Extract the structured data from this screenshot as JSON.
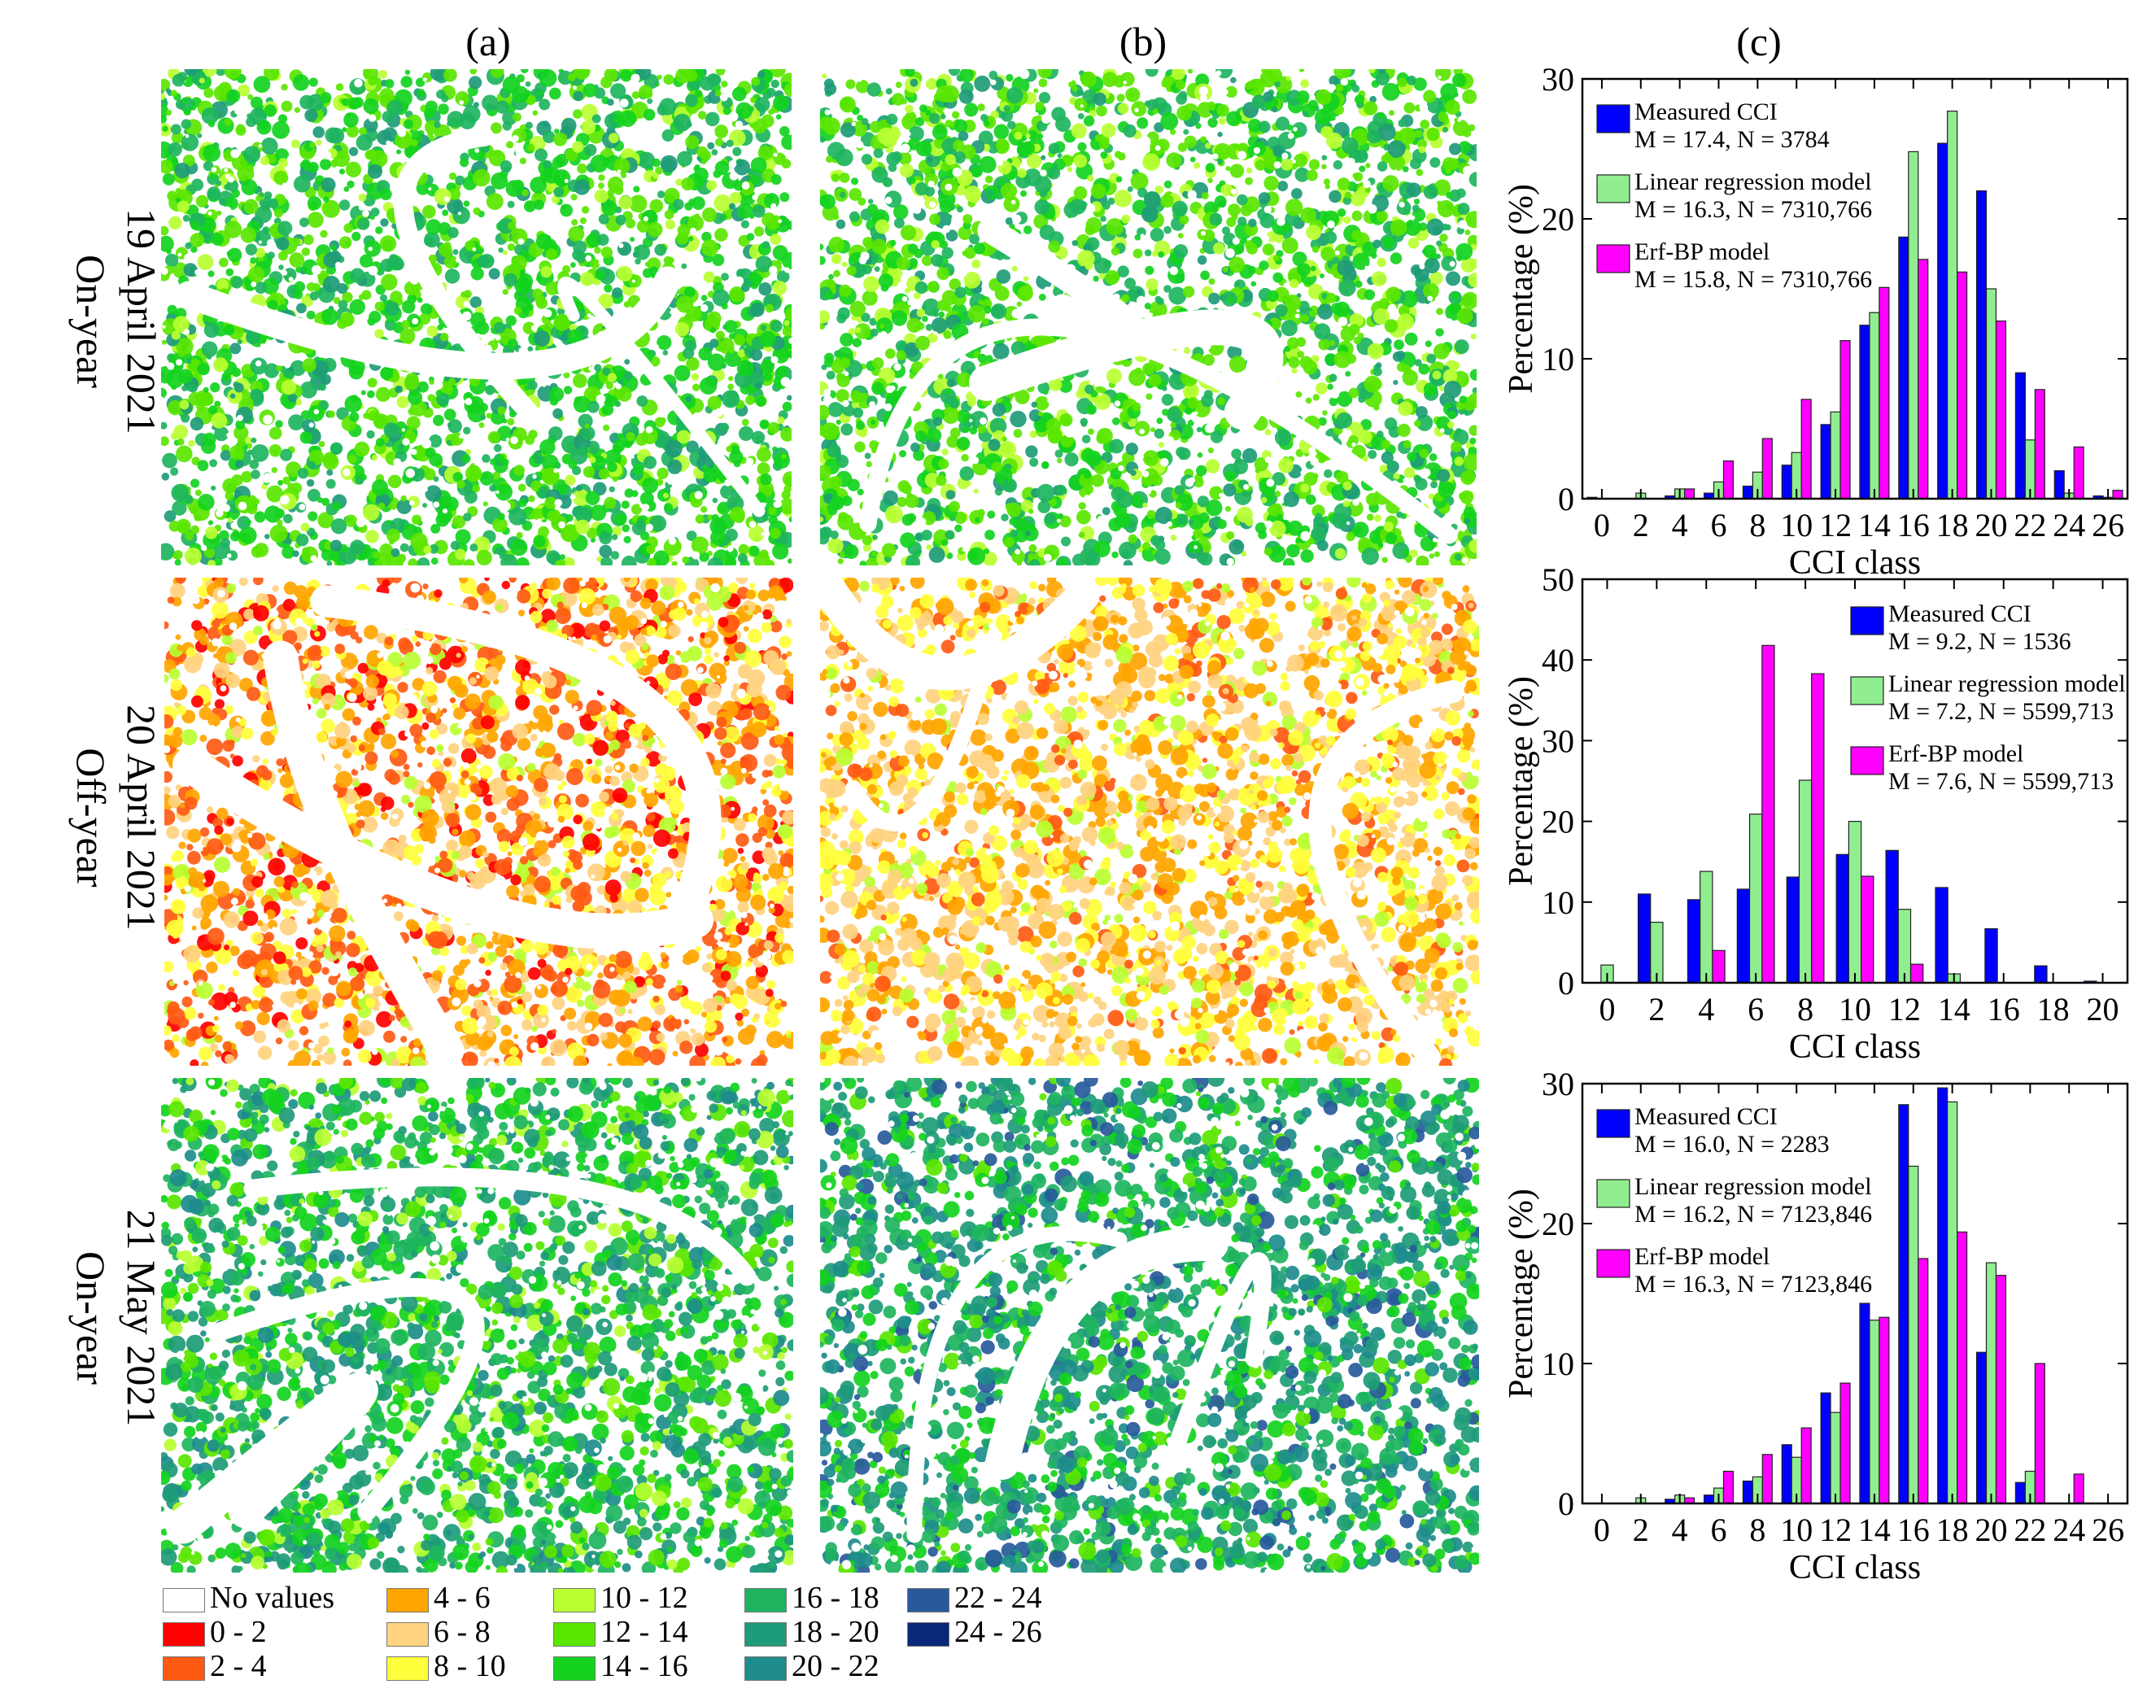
{
  "columns": [
    "(a)",
    "(b)",
    "(c)"
  ],
  "rows": [
    {
      "date": "19 April 2021",
      "phase": "On-year"
    },
    {
      "date": "20 April 2021",
      "phase": "Off-year"
    },
    {
      "date": "21 May 2021",
      "phase": "On-year"
    }
  ],
  "legend": [
    {
      "label": "No values",
      "color": "#ffffff"
    },
    {
      "label": "0 - 2",
      "color": "#ff0000"
    },
    {
      "label": "2 - 4",
      "color": "#ff5a14"
    },
    {
      "label": "4 - 6",
      "color": "#ffa500"
    },
    {
      "label": "6 - 8",
      "color": "#ffd37f"
    },
    {
      "label": "8 - 10",
      "color": "#ffff3c"
    },
    {
      "label": "10 - 12",
      "color": "#b9ff32"
    },
    {
      "label": "12 - 14",
      "color": "#5ae600"
    },
    {
      "label": "14 - 16",
      "color": "#14d21e"
    },
    {
      "label": "16 - 18",
      "color": "#1eb45f"
    },
    {
      "label": "18 - 20",
      "color": "#1e9b78"
    },
    {
      "label": "20 - 22",
      "color": "#1e8c8c"
    },
    {
      "label": "22 - 24",
      "color": "#285a9b"
    },
    {
      "label": "24 - 26",
      "color": "#0a2878"
    }
  ],
  "series_colors": {
    "measured": "#0000ff",
    "linear": "#90ee90",
    "erf": "#ff00ff"
  },
  "chart_data": [
    {
      "type": "bar",
      "xlabel": "CCI class",
      "ylabel": "Percentage (%)",
      "ylim": [
        0,
        30
      ],
      "yticks": [
        0,
        10,
        20,
        30
      ],
      "xlim": [
        -1,
        27
      ],
      "xticks": [
        0,
        2,
        4,
        6,
        8,
        10,
        12,
        14,
        16,
        18,
        20,
        22,
        24,
        26
      ],
      "legend_position": "top-left",
      "series": [
        {
          "name": "Measured CCI",
          "stats": "M = 17.4, N = 3784",
          "x": [
            0,
            2,
            4,
            6,
            8,
            10,
            12,
            14,
            16,
            18,
            20,
            22,
            24,
            26
          ],
          "values": [
            0.1,
            0,
            0.2,
            0.4,
            0.9,
            2.4,
            5.3,
            12.4,
            18.7,
            25.4,
            22.0,
            9.0,
            2.0,
            0.2
          ]
        },
        {
          "name": "Linear regression model",
          "stats": "M = 16.3, N = 7310,766",
          "x": [
            0,
            2,
            4,
            6,
            8,
            10,
            12,
            14,
            16,
            18,
            20,
            22,
            24,
            26
          ],
          "values": [
            0,
            0.4,
            0.7,
            1.2,
            1.9,
            3.3,
            6.2,
            13.3,
            24.8,
            27.7,
            15.0,
            4.2,
            0.4,
            0.1
          ]
        },
        {
          "name": "Erf-BP model",
          "stats": "M = 15.8, N = 7310,766",
          "x": [
            0,
            2,
            4,
            6,
            8,
            10,
            12,
            14,
            16,
            18,
            20,
            22,
            24,
            26
          ],
          "values": [
            0,
            0,
            0.7,
            2.7,
            4.3,
            7.1,
            11.3,
            15.1,
            17.1,
            16.2,
            12.7,
            7.8,
            3.7,
            0.6
          ]
        }
      ]
    },
    {
      "type": "bar",
      "xlabel": "CCI class",
      "ylabel": "Percentage (%)",
      "ylim": [
        0,
        50
      ],
      "yticks": [
        0,
        10,
        20,
        30,
        40,
        50
      ],
      "xlim": [
        -1,
        21
      ],
      "xticks": [
        0,
        2,
        4,
        6,
        8,
        10,
        12,
        14,
        16,
        18,
        20
      ],
      "legend_position": "top-right",
      "series": [
        {
          "name": "Measured CCI",
          "stats": "M = 9.2, N = 1536",
          "x": [
            0,
            2,
            4,
            6,
            8,
            10,
            12,
            14,
            16,
            18,
            20
          ],
          "values": [
            0,
            11.0,
            10.3,
            11.6,
            13.1,
            15.9,
            16.4,
            11.8,
            6.7,
            2.1,
            0.2
          ]
        },
        {
          "name": "Linear regression model",
          "stats": "M = 7.2, N = 5599,713",
          "x": [
            0,
            2,
            4,
            6,
            8,
            10,
            12,
            14,
            16,
            18,
            20
          ],
          "values": [
            2.2,
            7.5,
            13.8,
            20.9,
            25.1,
            20.0,
            9.1,
            1.1,
            0,
            0,
            0
          ]
        },
        {
          "name": "Erf-BP model",
          "stats": "M = 7.6, N = 5599,713",
          "x": [
            0,
            2,
            4,
            6,
            8,
            10,
            12,
            14,
            16,
            18,
            20
          ],
          "values": [
            0,
            0,
            4.0,
            41.8,
            38.3,
            13.2,
            2.3,
            0,
            0,
            0,
            0
          ]
        }
      ]
    },
    {
      "type": "bar",
      "xlabel": "CCI class",
      "ylabel": "Percentage (%)",
      "ylim": [
        0,
        30
      ],
      "yticks": [
        0,
        10,
        20,
        30
      ],
      "xlim": [
        -1,
        27
      ],
      "xticks": [
        0,
        2,
        4,
        6,
        8,
        10,
        12,
        14,
        16,
        18,
        20,
        22,
        24,
        26
      ],
      "legend_position": "top-left",
      "series": [
        {
          "name": "Measured CCI",
          "stats": "M = 16.0, N = 2283",
          "x": [
            0,
            2,
            4,
            6,
            8,
            10,
            12,
            14,
            16,
            18,
            20,
            22,
            24,
            26
          ],
          "values": [
            0,
            0,
            0.3,
            0.6,
            1.6,
            4.2,
            7.9,
            14.3,
            28.5,
            29.7,
            10.8,
            1.5,
            0,
            0
          ]
        },
        {
          "name": "Linear regression model",
          "stats": "M = 16.2, N = 7123,846",
          "x": [
            0,
            2,
            4,
            6,
            8,
            10,
            12,
            14,
            16,
            18,
            20,
            22,
            24,
            26
          ],
          "values": [
            0,
            0.4,
            0.6,
            1.1,
            1.9,
            3.3,
            6.5,
            13.1,
            24.1,
            28.7,
            17.2,
            2.3,
            0,
            0
          ]
        },
        {
          "name": "Erf-BP model",
          "stats": "M = 16.3, N = 7123,846",
          "x": [
            0,
            2,
            4,
            6,
            8,
            10,
            12,
            14,
            16,
            18,
            20,
            22,
            24,
            26
          ],
          "values": [
            0,
            0,
            0.4,
            2.3,
            3.5,
            5.4,
            8.6,
            13.3,
            17.5,
            19.4,
            16.3,
            10.0,
            2.1,
            0
          ]
        }
      ]
    }
  ]
}
